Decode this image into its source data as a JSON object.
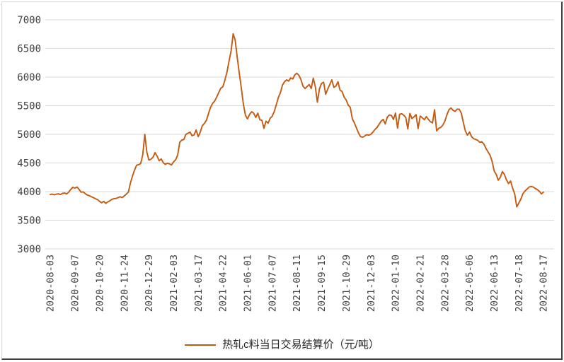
{
  "colors": {
    "line": "#C55A11",
    "gridline": "#D9D9D9",
    "tick_text": "#404040",
    "legend_text": "#262626",
    "border_light": "#D9D9D9",
    "border_dark": "#3F3F3F",
    "background": "#FFFFFF"
  },
  "legend": {
    "label": "热轧c料当日交易结算价（元/吨）"
  },
  "chart_data": {
    "type": "line",
    "title": "",
    "xlabel": "",
    "ylabel": "",
    "grid": "horizontal",
    "legend_position": "bottom",
    "y_axis": {
      "min": 3000,
      "max": 7000,
      "step": 500
    },
    "y_tick_labels": [
      "7000",
      "6500",
      "6000",
      "5500",
      "5000",
      "4500",
      "4000",
      "3500",
      "3000"
    ],
    "x_tick_labels": [
      "2020-08-03",
      "2020-09-07",
      "2020-10-20",
      "2020-11-24",
      "2020-12-29",
      "2021-02-03",
      "2021-03-17",
      "2021-04-22",
      "2021-06-01",
      "2021-07-07",
      "2021-08-11",
      "2021-09-15",
      "2021-10-29",
      "2021-12-03",
      "2022-01-10",
      "2022-02-21",
      "2022-03-28",
      "2022-05-06",
      "2022-06-13",
      "2022-07-18",
      "2022-08-17"
    ],
    "points_per_tick_interval": 12,
    "series": [
      {
        "name": "热轧c料当日交易结算价（元/吨）",
        "color": "#C55A11",
        "values": [
          3950,
          3955,
          3945,
          3955,
          3960,
          3950,
          3970,
          3975,
          3960,
          3990,
          4040,
          4075,
          4060,
          4080,
          4040,
          3990,
          3995,
          3965,
          3940,
          3930,
          3910,
          3895,
          3875,
          3860,
          3830,
          3805,
          3830,
          3795,
          3820,
          3840,
          3865,
          3875,
          3880,
          3895,
          3910,
          3895,
          3925,
          3955,
          3990,
          4150,
          4270,
          4375,
          4460,
          4470,
          4490,
          4640,
          5000,
          4690,
          4550,
          4565,
          4600,
          4680,
          4620,
          4540,
          4570,
          4505,
          4475,
          4495,
          4485,
          4465,
          4520,
          4555,
          4640,
          4860,
          4900,
          4910,
          5000,
          5020,
          5040,
          4975,
          4990,
          5075,
          4960,
          5040,
          5150,
          5190,
          5245,
          5360,
          5470,
          5540,
          5580,
          5650,
          5730,
          5805,
          5830,
          5950,
          6090,
          6280,
          6460,
          6755,
          6640,
          6340,
          6060,
          5800,
          5520,
          5330,
          5270,
          5350,
          5395,
          5370,
          5295,
          5370,
          5255,
          5245,
          5105,
          5230,
          5195,
          5280,
          5315,
          5400,
          5520,
          5645,
          5730,
          5860,
          5920,
          5950,
          5930,
          5985,
          5965,
          6040,
          6065,
          6030,
          5955,
          5840,
          5800,
          5835,
          5870,
          5800,
          5980,
          5830,
          5560,
          5795,
          5890,
          5910,
          5700,
          5790,
          5870,
          5950,
          5820,
          5845,
          5920,
          5770,
          5750,
          5650,
          5600,
          5510,
          5470,
          5270,
          5200,
          5110,
          5025,
          4960,
          4950,
          4970,
          4995,
          4985,
          5000,
          5040,
          5085,
          5120,
          5175,
          5230,
          5260,
          5180,
          5300,
          5340,
          5330,
          5260,
          5370,
          5110,
          5350,
          5360,
          5335,
          5295,
          5095,
          5365,
          5275,
          5305,
          5345,
          5100,
          5320,
          5290,
          5255,
          5310,
          5260,
          5220,
          5200,
          5430,
          5060,
          5105,
          5120,
          5160,
          5230,
          5340,
          5430,
          5460,
          5420,
          5400,
          5440,
          5440,
          5370,
          5210,
          5060,
          4985,
          5040,
          4960,
          4925,
          4910,
          4895,
          4860,
          4870,
          4830,
          4755,
          4695,
          4635,
          4530,
          4360,
          4300,
          4200,
          4250,
          4350,
          4300,
          4205,
          4140,
          4185,
          4060,
          3960,
          3735,
          3800,
          3870,
          3965,
          4010,
          4045,
          4080,
          4090,
          4080,
          4055,
          4035,
          4005,
          3960,
          3990
        ]
      }
    ]
  }
}
